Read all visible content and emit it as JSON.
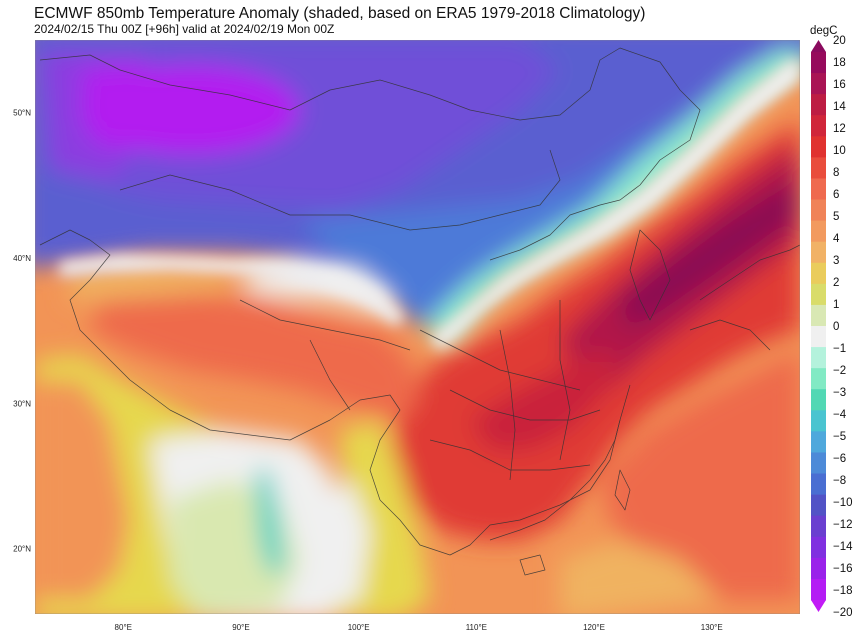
{
  "header": {
    "title": "ECMWF 850mb Temperature Anomaly (shaded, based on ERA5 1979-2018 Climatology)",
    "subtitle": "2024/02/15 Thu 00Z [+96h] valid at 2024/02/19 Mon 00Z"
  },
  "map": {
    "lat_labels": [
      "50°N",
      "40°N",
      "30°N",
      "20°N"
    ],
    "lat_values": [
      50,
      40,
      30,
      20
    ],
    "lon_labels": [
      "80°E",
      "90°E",
      "100°E",
      "110°E",
      "120°E",
      "130°E"
    ],
    "lon_values": [
      80,
      90,
      100,
      110,
      120,
      130
    ],
    "extent": {
      "lon_min": 72.5,
      "lon_max": 137.5,
      "lat_min": 15.5,
      "lat_max": 55
    },
    "colors": {
      "purple_deep": "#b31cf0",
      "purple": "#8b3ee0",
      "violet": "#6f4fd8",
      "blue_dark": "#5a5fd0",
      "blue": "#4d7ad8",
      "blue_light": "#52a8d8",
      "teal": "#47d0c6",
      "mint": "#8eedcf",
      "neutral": "#f0f0f0",
      "green_pale": "#d9e8b0",
      "yellow": "#e6d84e",
      "orange_pale": "#f0b261",
      "orange": "#f29456",
      "red_orange": "#ee6a4c",
      "red": "#e03a35",
      "crimson": "#c9243a",
      "maroon": "#b01548",
      "dark_maroon": "#8a0d52"
    }
  },
  "colorbar": {
    "unit": "degC",
    "labels": [
      "20",
      "18",
      "16",
      "14",
      "12",
      "10",
      "8",
      "6",
      "5",
      "4",
      "3",
      "2",
      "1",
      "0",
      "−1",
      "−2",
      "−3",
      "−4",
      "−5",
      "−6",
      "−8",
      "−10",
      "−12",
      "−14",
      "−16",
      "−18",
      "−20"
    ],
    "colors": [
      "#960a5c",
      "#a91454",
      "#bd1d43",
      "#d0263a",
      "#e0322f",
      "#e94d3c",
      "#ef6a4f",
      "#f08358",
      "#f29a5f",
      "#f1b266",
      "#eacc5c",
      "#d9dc6a",
      "#d9e8b4",
      "#f0f0f0",
      "#b4f2dc",
      "#82eac4",
      "#52d8b4",
      "#4ac4d0",
      "#4fa8dc",
      "#4d8ad8",
      "#4a6ed2",
      "#5253c6",
      "#6a3fd0",
      "#8030e0",
      "#9a22ea",
      "#b41cf4"
    ]
  }
}
